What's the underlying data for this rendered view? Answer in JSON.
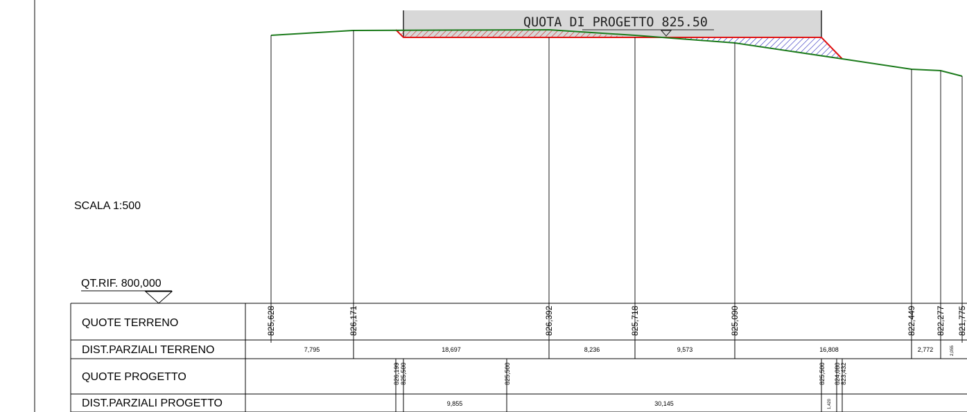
{
  "scale_label": "SCALA 1:500",
  "ref_label": "QT.RIF. 800,000",
  "project_banner": "QUOTA DI PROGETTO 825.50",
  "row_labels": {
    "quote_terreno": "QUOTE TERRENO",
    "dist_terreno": "DIST.PARZIALI TERRENO",
    "quote_progetto": "QUOTE PROGETTO",
    "dist_progetto": "DIST.PARZIALI PROGETTO"
  },
  "terrain_elevations": [
    "825,628",
    "826,171",
    "826,392",
    "825,718",
    "825,090",
    "822,449",
    "822,277",
    "821,775"
  ],
  "terrain_distances": [
    "7,795",
    "18,697",
    "8,236",
    "9,573",
    "16,808",
    "2,772",
    "2,055"
  ],
  "project_elevations": {
    "left_a": "826,199",
    "left_b": "825,500",
    "mid": "825,500",
    "right_a": "825,500",
    "right_b": "824,080",
    "right_c": "823,432"
  },
  "project_distances": [
    "9,855",
    "30,145",
    "1,420"
  ],
  "colors": {
    "terrain_line": "#1a7a1a",
    "fill_boundary": "#e01010",
    "cut_hatch": "#d42020",
    "fill_hatch": "#1a1ab8",
    "platform": "#d8d8d8"
  }
}
